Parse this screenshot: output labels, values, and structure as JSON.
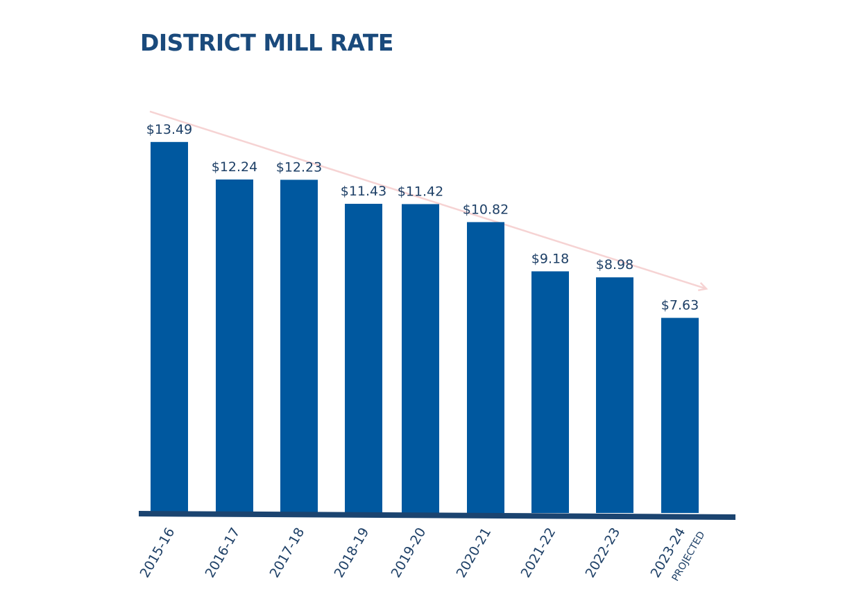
{
  "chart_data": {
    "type": "bar",
    "title": "DISTRICT MILL RATE",
    "categories": [
      "2015-16",
      "2016-17",
      "2017-18",
      "2018-19",
      "2019-20",
      "2020-21",
      "2021-22",
      "2022-23",
      "2023-24"
    ],
    "category_sublabels": [
      "",
      "",
      "",
      "",
      "",
      "",
      "",
      "",
      "PROJECTED"
    ],
    "values": [
      13.49,
      12.24,
      12.23,
      11.43,
      11.42,
      10.82,
      9.18,
      8.98,
      7.63
    ],
    "value_labels": [
      "$13.49",
      "$12.24",
      "$12.23",
      "$11.43",
      "$11.42",
      "$10.82",
      "$9.18",
      "$8.98",
      "$7.63"
    ],
    "xlabel": "",
    "ylabel": "",
    "grid": false,
    "legend": "none",
    "trend_arrow": true
  },
  "colors": {
    "bar": "#00589f",
    "title": "#1a4a7c",
    "text": "#1d3f66",
    "axis": "#1b4470",
    "trend": "#f6d3d3"
  }
}
